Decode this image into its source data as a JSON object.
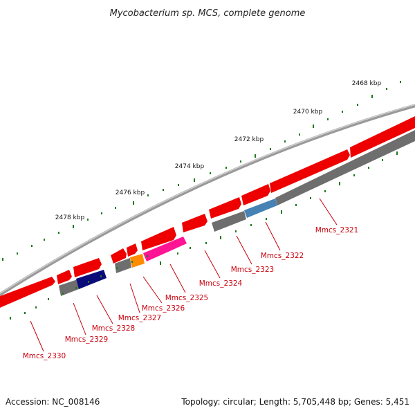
{
  "title": "Mycobacterium sp. MCS, complete genome",
  "footer": {
    "accession": "Accession: NC_008146",
    "topology": "Topology: circular; Length: 5,705,448 bp; Genes: 5,451"
  },
  "kbp_labels": [
    "2468 kbp",
    "2470 kbp",
    "2472 kbp",
    "2474 kbp",
    "2476 kbp",
    "2478 kbp"
  ],
  "genes": [
    {
      "id": "Mmcs_2321"
    },
    {
      "id": "Mmcs_2322"
    },
    {
      "id": "Mmcs_2323"
    },
    {
      "id": "Mmcs_2324"
    },
    {
      "id": "Mmcs_2325"
    },
    {
      "id": "Mmcs_2326"
    },
    {
      "id": "Mmcs_2327"
    },
    {
      "id": "Mmcs_2328"
    },
    {
      "id": "Mmcs_2329"
    },
    {
      "id": "Mmcs_2330"
    }
  ],
  "colors": {
    "backbone": "#8c8c8c",
    "forward_gene": "#ee0000",
    "reverse_gene": "#707070",
    "tick": "#1e7a1e",
    "label": "#c8000c",
    "highlight_blue": "#4682b4",
    "highlight_navy": "#000080",
    "highlight_pink": "#ff1493",
    "highlight_orange": "#ff8c00"
  }
}
